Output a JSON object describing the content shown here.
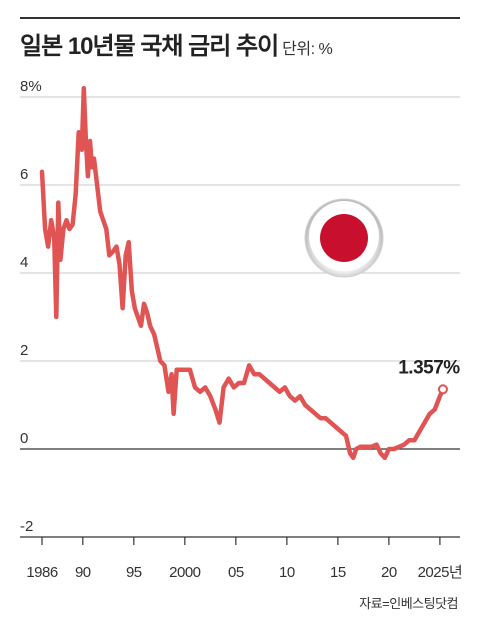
{
  "header": {
    "title": "일본 10년물 국채 금리 추이",
    "unit": "단위: %"
  },
  "source": "자료=인베스팅닷컴",
  "colors": {
    "series": "#e05454",
    "flag_red": "#c8102e"
  },
  "icon": "japan-flag-icon",
  "chart_data": {
    "type": "line",
    "title": "일본 10년물 국채 금리 추이",
    "ylabel": "%",
    "xlim": [
      1986,
      2025.5
    ],
    "ylim": [
      -2,
      8
    ],
    "yticks": [
      8,
      6,
      4,
      2,
      0,
      -2
    ],
    "ytick_labels": [
      "8%",
      "6",
      "4",
      "2",
      "0",
      "-2"
    ],
    "xticks": [
      1986,
      1990,
      1995,
      2000,
      2005,
      2010,
      2015,
      2020,
      2025
    ],
    "xtick_labels": [
      "1986",
      "90",
      "95",
      "2000",
      "05",
      "10",
      "15",
      "20",
      "2025년"
    ],
    "last_value_label": "1.357%",
    "series": [
      {
        "x": [
          1986.0,
          1986.3,
          1986.6,
          1986.9,
          1987.2,
          1987.4,
          1987.6,
          1987.8,
          1988.1,
          1988.4,
          1988.7,
          1989.0,
          1989.3,
          1989.6,
          1989.9,
          1990.1,
          1990.3,
          1990.5,
          1990.7,
          1990.9,
          1991.1,
          1991.4,
          1991.7,
          1992.0,
          1992.3,
          1992.6,
          1993.0,
          1993.3,
          1993.6,
          1993.9,
          1994.2,
          1994.5,
          1994.8,
          1995.1,
          1995.4,
          1995.7,
          1996.0,
          1996.3,
          1996.6,
          1997.0,
          1997.3,
          1997.6,
          1998.0,
          1998.4,
          1998.7,
          1998.9,
          1999.2,
          1999.5,
          2000.0,
          2000.5,
          2001.0,
          2001.5,
          2002.0,
          2002.5,
          2003.0,
          2003.4,
          2003.8,
          2004.3,
          2004.8,
          2005.3,
          2005.8,
          2006.3,
          2006.8,
          2007.3,
          2007.8,
          2008.3,
          2008.8,
          2009.3,
          2009.8,
          2010.3,
          2010.8,
          2011.3,
          2011.8,
          2012.3,
          2012.8,
          2013.3,
          2013.8,
          2014.3,
          2014.8,
          2015.3,
          2015.8,
          2016.2,
          2016.5,
          2016.8,
          2017.2,
          2017.8,
          2018.3,
          2018.8,
          2019.2,
          2019.6,
          2020.0,
          2020.5,
          2021.0,
          2021.5,
          2022.0,
          2022.5,
          2023.0,
          2023.5,
          2024.0,
          2024.5,
          2025.0,
          2025.3
        ],
        "y": [
          6.3,
          5.0,
          4.6,
          5.2,
          4.8,
          3.0,
          5.6,
          4.3,
          5.0,
          5.2,
          5.0,
          5.1,
          5.8,
          7.2,
          6.8,
          8.2,
          7.0,
          6.2,
          7.0,
          6.4,
          6.6,
          6.0,
          5.4,
          5.2,
          5.0,
          4.4,
          4.5,
          4.6,
          4.2,
          3.2,
          4.4,
          4.7,
          3.6,
          3.2,
          3.0,
          2.8,
          3.3,
          3.1,
          2.8,
          2.6,
          2.3,
          2.0,
          1.9,
          1.3,
          1.7,
          0.8,
          1.8,
          1.8,
          1.8,
          1.8,
          1.4,
          1.3,
          1.4,
          1.2,
          0.9,
          0.6,
          1.4,
          1.6,
          1.4,
          1.5,
          1.5,
          1.9,
          1.7,
          1.7,
          1.6,
          1.5,
          1.4,
          1.3,
          1.4,
          1.2,
          1.1,
          1.2,
          1.0,
          0.9,
          0.8,
          0.7,
          0.7,
          0.6,
          0.5,
          0.4,
          0.3,
          -0.1,
          -0.2,
          0.0,
          0.05,
          0.05,
          0.05,
          0.1,
          -0.1,
          -0.2,
          0.0,
          0.0,
          0.05,
          0.1,
          0.2,
          0.2,
          0.4,
          0.6,
          0.8,
          0.9,
          1.2,
          1.357
        ]
      }
    ]
  }
}
